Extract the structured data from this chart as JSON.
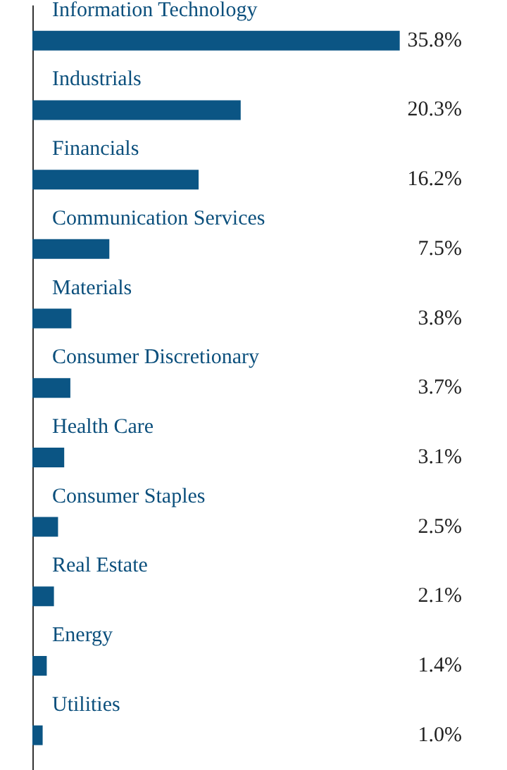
{
  "chart_data": {
    "type": "bar",
    "orientation": "horizontal",
    "categories": [
      "Information Technology",
      "Industrials",
      "Financials",
      "Communication Services",
      "Materials",
      "Consumer Discretionary",
      "Health Care",
      "Consumer Staples",
      "Real Estate",
      "Energy",
      "Utilities"
    ],
    "values": [
      35.8,
      20.3,
      16.2,
      7.5,
      3.8,
      3.7,
      3.1,
      2.5,
      2.1,
      1.4,
      1.0
    ],
    "value_labels": [
      "35.8%",
      "20.3%",
      "16.2%",
      "7.5%",
      "3.8%",
      "3.7%",
      "3.1%",
      "2.5%",
      "2.1%",
      "1.4%",
      "1.0%"
    ],
    "color": "#0b5584"
  }
}
